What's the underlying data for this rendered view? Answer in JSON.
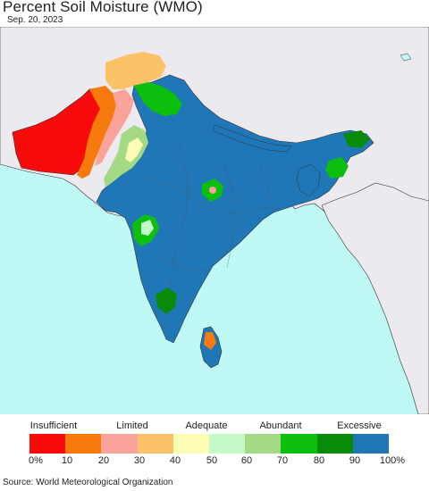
{
  "title": "Percent Soil Moisture (WMO)",
  "date": "Sep. 20, 2023",
  "map": {
    "ocean_color": "#bff9f6",
    "land_other_color": "#ece9ef",
    "border_color": "#333333"
  },
  "legend": {
    "categories": [
      {
        "label": "Insufficient"
      },
      {
        "label": "Limited"
      },
      {
        "label": "Adequate"
      },
      {
        "label": "Abundant"
      },
      {
        "label": "Excessive"
      }
    ],
    "colors": [
      "#f70a0a",
      "#f77b0c",
      "#f9a39b",
      "#fcc26a",
      "#fcfcb4",
      "#c3fac8",
      "#a4d985",
      "#0cbf0c",
      "#098a09",
      "#1f77b8"
    ],
    "ticks": [
      "0%",
      "10",
      "20",
      "30",
      "40",
      "50",
      "60",
      "70",
      "80",
      "90",
      "100%"
    ]
  },
  "source": "Source: World Meteorological Organization"
}
